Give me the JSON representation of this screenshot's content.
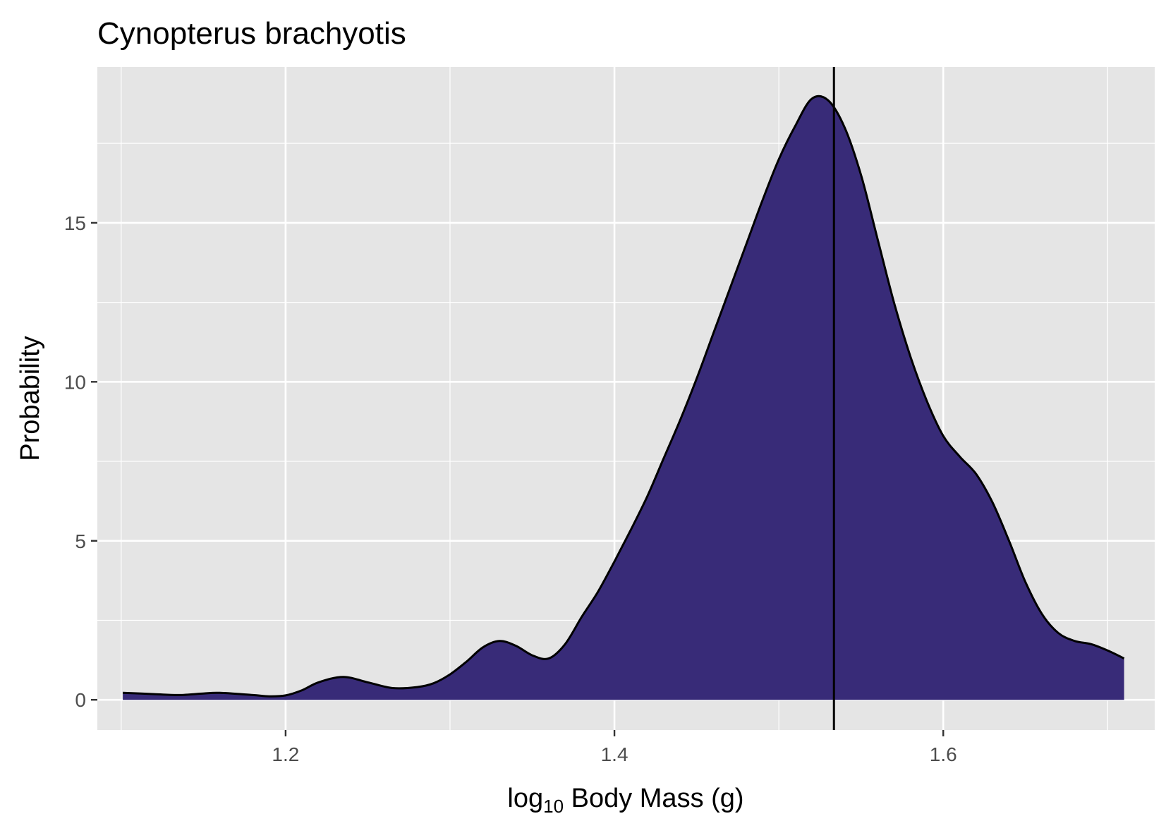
{
  "chart_data": {
    "type": "area",
    "title": "Cynopterus brachyotis",
    "xlabel": {
      "base": "log",
      "subscript": "10",
      "rest": " Body Mass (g)"
    },
    "ylabel": "Probability",
    "xlim": [
      1.0855,
      1.7286
    ],
    "ylim": [
      -0.95,
      19.9
    ],
    "x_ticks": [
      1.2,
      1.4,
      1.6
    ],
    "x_tick_labels": [
      "1.2",
      "1.4",
      "1.6"
    ],
    "x_minor": [
      1.1,
      1.3,
      1.5,
      1.7
    ],
    "y_ticks": [
      0,
      5,
      10,
      15
    ],
    "y_tick_labels": [
      "0",
      "5",
      "10",
      "15"
    ],
    "y_minor": [
      2.5,
      7.5,
      12.5,
      17.5
    ],
    "reference_line_x": 1.5335,
    "grid": true,
    "colors": {
      "panel": "#e5e5e5",
      "grid": "#ffffff",
      "fill": "#382b78",
      "line": "#000000"
    },
    "series": [
      {
        "x": [
          1.101,
          1.12,
          1.135,
          1.15,
          1.16,
          1.18,
          1.19,
          1.2,
          1.21,
          1.22,
          1.235,
          1.25,
          1.265,
          1.28,
          1.29,
          1.3,
          1.31,
          1.32,
          1.33,
          1.34,
          1.35,
          1.36,
          1.37,
          1.38,
          1.39,
          1.4,
          1.41,
          1.42,
          1.43,
          1.44,
          1.45,
          1.46,
          1.47,
          1.48,
          1.49,
          1.5,
          1.51,
          1.52,
          1.53,
          1.54,
          1.55,
          1.56,
          1.57,
          1.58,
          1.59,
          1.6,
          1.61,
          1.62,
          1.63,
          1.64,
          1.65,
          1.66,
          1.67,
          1.68,
          1.69,
          1.7,
          1.71
        ],
        "y": [
          0.22,
          0.18,
          0.15,
          0.2,
          0.22,
          0.15,
          0.11,
          0.14,
          0.3,
          0.55,
          0.72,
          0.55,
          0.37,
          0.4,
          0.52,
          0.8,
          1.2,
          1.65,
          1.85,
          1.7,
          1.4,
          1.3,
          1.75,
          2.6,
          3.4,
          4.35,
          5.35,
          6.4,
          7.6,
          8.8,
          10.1,
          11.5,
          12.9,
          14.3,
          15.7,
          17.0,
          18.05,
          18.9,
          18.85,
          18.0,
          16.5,
          14.5,
          12.5,
          10.8,
          9.4,
          8.3,
          7.65,
          7.1,
          6.2,
          5.0,
          3.7,
          2.7,
          2.1,
          1.85,
          1.75,
          1.55,
          1.3
        ]
      }
    ]
  }
}
